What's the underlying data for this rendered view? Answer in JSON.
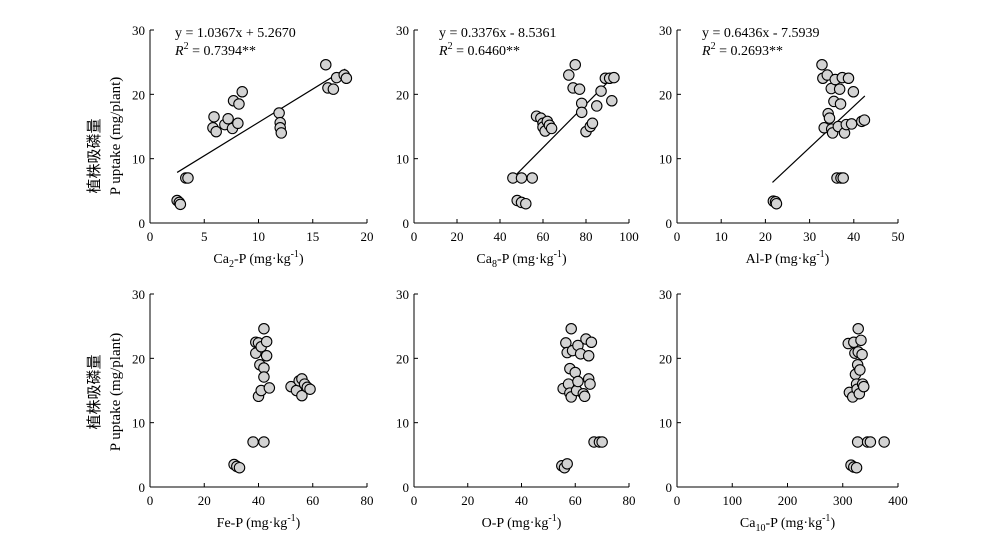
{
  "figure": {
    "ylabel_cn": "植株吸磷量",
    "ylabel_en": "P uptake (mg/plant)"
  },
  "chart_data": [
    {
      "type": "scatter",
      "xlabel": "Ca2-P (mg·kg-1)",
      "xlabel_parts": {
        "main": "Ca",
        "sub": "2",
        "after": "-P (mg·kg",
        "sup": "-1",
        "end": ")"
      },
      "xlim": [
        0,
        20
      ],
      "xticks": [
        0,
        5,
        10,
        15,
        20
      ],
      "ylim": [
        0,
        30
      ],
      "yticks": [
        0,
        10,
        20,
        30
      ],
      "equation": "y = 1.0367x + 5.2670",
      "r2": "R2 = 0.7394**",
      "r2_value": "= 0.7394**",
      "fit": {
        "slope": 1.0367,
        "intercept": 5.267,
        "x_range": [
          2.5,
          18
        ]
      },
      "points": [
        [
          2.5,
          3.5
        ],
        [
          2.7,
          3.2
        ],
        [
          2.8,
          2.9
        ],
        [
          3.3,
          7.0
        ],
        [
          3.5,
          7.0
        ],
        [
          5.8,
          14.8
        ],
        [
          5.9,
          16.5
        ],
        [
          6.1,
          14.2
        ],
        [
          6.9,
          15.3
        ],
        [
          7.2,
          16.2
        ],
        [
          7.6,
          14.7
        ],
        [
          7.7,
          19.0
        ],
        [
          8.1,
          15.5
        ],
        [
          8.2,
          18.5
        ],
        [
          8.5,
          20.4
        ],
        [
          11.9,
          17.1
        ],
        [
          12.0,
          15.6
        ],
        [
          12.0,
          14.8
        ],
        [
          12.1,
          14.0
        ],
        [
          16.2,
          24.6
        ],
        [
          16.4,
          21.0
        ],
        [
          16.9,
          20.8
        ],
        [
          17.2,
          22.6
        ],
        [
          17.9,
          23.0
        ],
        [
          18.1,
          22.5
        ]
      ]
    },
    {
      "type": "scatter",
      "xlabel": "Ca8-P (mg·kg-1)",
      "xlabel_parts": {
        "main": "Ca",
        "sub": "8",
        "after": "-P (mg·kg",
        "sup": "-1",
        "end": ")"
      },
      "xlim": [
        0,
        100
      ],
      "xticks": [
        0,
        20,
        40,
        60,
        80,
        100
      ],
      "ylim": [
        0,
        30
      ],
      "yticks": [
        0,
        10,
        20,
        30
      ],
      "equation": "y = 0.3376x - 8.5361",
      "r2": "R2 = 0.6460**",
      "r2_value": "= 0.6460**",
      "fit": {
        "slope": 0.3376,
        "intercept": -8.5361,
        "x_range": [
          45,
          93
        ]
      },
      "points": [
        [
          46,
          7.0
        ],
        [
          48,
          3.5
        ],
        [
          50,
          3.2
        ],
        [
          50,
          7.0
        ],
        [
          52,
          3.0
        ],
        [
          55,
          7.0
        ],
        [
          57,
          16.6
        ],
        [
          59,
          16.3
        ],
        [
          60,
          15.5
        ],
        [
          60,
          14.9
        ],
        [
          61,
          14.3
        ],
        [
          62,
          15.8
        ],
        [
          63,
          15.2
        ],
        [
          64,
          14.7
        ],
        [
          72,
          23.0
        ],
        [
          74,
          21.0
        ],
        [
          75,
          24.6
        ],
        [
          77,
          20.8
        ],
        [
          78,
          18.6
        ],
        [
          78,
          17.2
        ],
        [
          80,
          14.2
        ],
        [
          82,
          15.0
        ],
        [
          83,
          15.5
        ],
        [
          85,
          18.2
        ],
        [
          87,
          20.5
        ],
        [
          89,
          22.5
        ],
        [
          91,
          22.5
        ],
        [
          92,
          19.0
        ],
        [
          93,
          22.6
        ]
      ]
    },
    {
      "type": "scatter",
      "xlabel": "Al-P (mg·kg-1)",
      "xlabel_parts": {
        "main": "Al-P (mg·kg",
        "sub": "",
        "after": "",
        "sup": "-1",
        "end": ")"
      },
      "xlim": [
        0,
        50
      ],
      "xticks": [
        0,
        10,
        20,
        30,
        40,
        50
      ],
      "ylim": [
        0,
        30
      ],
      "yticks": [
        0,
        10,
        20,
        30
      ],
      "equation": "y = 0.6436x - 7.5939",
      "r2": "R2 = 0.2693**",
      "r2_value": "= 0.2693**",
      "fit": {
        "slope": 0.6436,
        "intercept": -7.5939,
        "x_range": [
          21.6,
          42.5
        ]
      },
      "points": [
        [
          21.8,
          3.4
        ],
        [
          22.3,
          3.3
        ],
        [
          22.5,
          3.0
        ],
        [
          32.8,
          24.6
        ],
        [
          33.0,
          22.5
        ],
        [
          33.3,
          14.8
        ],
        [
          34.0,
          23.0
        ],
        [
          34.2,
          17.0
        ],
        [
          34.5,
          16.3
        ],
        [
          34.9,
          20.9
        ],
        [
          35.0,
          14.6
        ],
        [
          35.2,
          14.0
        ],
        [
          35.5,
          18.9
        ],
        [
          35.8,
          22.3
        ],
        [
          36.2,
          7.0
        ],
        [
          36.5,
          15.0
        ],
        [
          36.8,
          20.8
        ],
        [
          37.0,
          18.5
        ],
        [
          37.1,
          7.0
        ],
        [
          37.4,
          22.6
        ],
        [
          37.6,
          7.0
        ],
        [
          37.9,
          14.0
        ],
        [
          38.3,
          15.3
        ],
        [
          38.8,
          22.5
        ],
        [
          39.5,
          15.4
        ],
        [
          39.9,
          20.4
        ],
        [
          41.8,
          15.8
        ],
        [
          42.4,
          16.0
        ]
      ]
    },
    {
      "type": "scatter",
      "xlabel": "Fe-P (mg·kg-1)",
      "xlabel_parts": {
        "main": "Fe-P (mg·kg",
        "sub": "",
        "after": "",
        "sup": "-1",
        "end": ")"
      },
      "xlim": [
        0,
        80
      ],
      "xticks": [
        0,
        20,
        40,
        60,
        80
      ],
      "ylim": [
        0,
        30
      ],
      "yticks": [
        0,
        10,
        20,
        30
      ],
      "points": [
        [
          31,
          3.5
        ],
        [
          32,
          3.2
        ],
        [
          33,
          3.0
        ],
        [
          38,
          7.0
        ],
        [
          39,
          22.5
        ],
        [
          39,
          20.8
        ],
        [
          40,
          22.4
        ],
        [
          40,
          14.1
        ],
        [
          40.5,
          19.0
        ],
        [
          41,
          15.0
        ],
        [
          41,
          21.8
        ],
        [
          42,
          24.6
        ],
        [
          42,
          18.5
        ],
        [
          42,
          17.1
        ],
        [
          42,
          7.0
        ],
        [
          43,
          22.6
        ],
        [
          43,
          20.4
        ],
        [
          44,
          15.4
        ],
        [
          52,
          15.6
        ],
        [
          54,
          15.0
        ],
        [
          55,
          16.5
        ],
        [
          56,
          14.2
        ],
        [
          56,
          16.8
        ],
        [
          57,
          16.0
        ],
        [
          58,
          15.5
        ],
        [
          59,
          15.2
        ]
      ]
    },
    {
      "type": "scatter",
      "xlabel": "O-P (mg·kg-1)",
      "xlabel_parts": {
        "main": "O-P (mg·kg",
        "sub": "",
        "after": "",
        "sup": "-1",
        "end": ")"
      },
      "xlim": [
        0,
        80
      ],
      "xticks": [
        0,
        20,
        40,
        60,
        80
      ],
      "ylim": [
        0,
        30
      ],
      "yticks": [
        0,
        10,
        20,
        30
      ],
      "points": [
        [
          55,
          3.3
        ],
        [
          56,
          3.0
        ],
        [
          57,
          3.6
        ],
        [
          55.5,
          15.3
        ],
        [
          56.5,
          22.4
        ],
        [
          57,
          20.9
        ],
        [
          57.5,
          16.0
        ],
        [
          58,
          18.4
        ],
        [
          58,
          14.6
        ],
        [
          58.5,
          24.6
        ],
        [
          58.5,
          14.0
        ],
        [
          59,
          21.2
        ],
        [
          60,
          17.8
        ],
        [
          60.5,
          15.0
        ],
        [
          61,
          22.0
        ],
        [
          61,
          16.4
        ],
        [
          62,
          20.7
        ],
        [
          63,
          14.5
        ],
        [
          63.5,
          14.1
        ],
        [
          64,
          23.0
        ],
        [
          65,
          20.4
        ],
        [
          65,
          16.8
        ],
        [
          65.5,
          16.0
        ],
        [
          66,
          22.5
        ],
        [
          67,
          7.0
        ],
        [
          69,
          7.0
        ],
        [
          70,
          7.0
        ]
      ]
    },
    {
      "type": "scatter",
      "xlabel": "Ca10-P (mg·kg-1)",
      "xlabel_parts": {
        "main": "Ca",
        "sub": "10",
        "after": "-P (mg·kg",
        "sup": "-1",
        "end": ")"
      },
      "xlim": [
        0,
        400
      ],
      "xticks": [
        0,
        100,
        200,
        300,
        400
      ],
      "ylim": [
        0,
        30
      ],
      "yticks": [
        0,
        10,
        20,
        30
      ],
      "points": [
        [
          315,
          3.4
        ],
        [
          320,
          3.1
        ],
        [
          325,
          3.0
        ],
        [
          310,
          22.3
        ],
        [
          312,
          14.7
        ],
        [
          318,
          14.0
        ],
        [
          320,
          22.5
        ],
        [
          322,
          20.8
        ],
        [
          323,
          17.5
        ],
        [
          325,
          16.0
        ],
        [
          326,
          15.2
        ],
        [
          327,
          19.0
        ],
        [
          328,
          24.6
        ],
        [
          328,
          21.0
        ],
        [
          330,
          14.5
        ],
        [
          331,
          18.2
        ],
        [
          333,
          22.8
        ],
        [
          335,
          20.6
        ],
        [
          336,
          16.0
        ],
        [
          338,
          15.6
        ],
        [
          327,
          7.0
        ],
        [
          345,
          7.0
        ],
        [
          350,
          7.0
        ],
        [
          375,
          7.0
        ]
      ]
    }
  ]
}
